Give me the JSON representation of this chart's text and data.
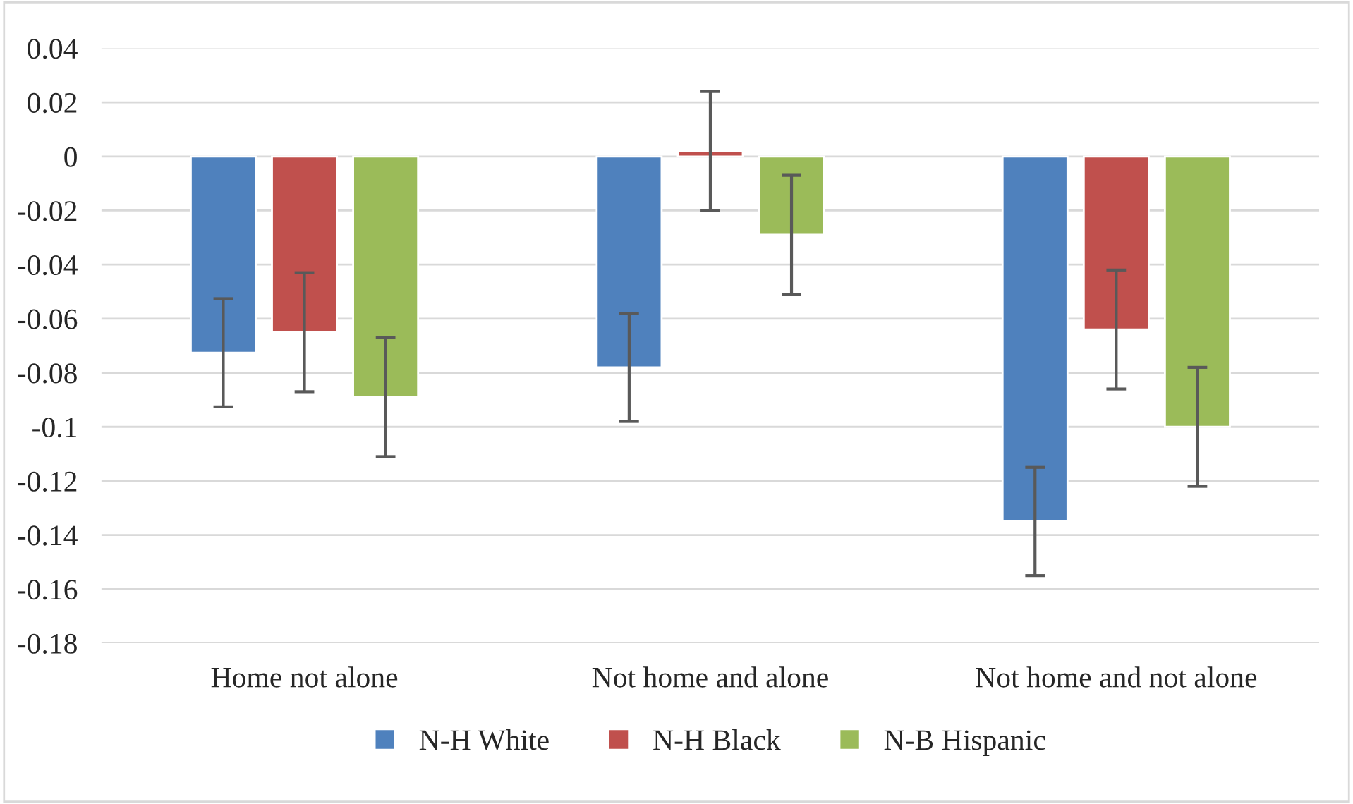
{
  "chart_data": {
    "type": "bar",
    "categories": [
      "Home not alone",
      "Not home and alone",
      "Not home and not alone"
    ],
    "series": [
      {
        "name": "N-H White",
        "color": "#4f81bd",
        "values": [
          -0.0726,
          -0.078,
          -0.135
        ],
        "errors": [
          0.02,
          0.02,
          0.02
        ]
      },
      {
        "name": "N-H Black",
        "color": "#c0504d",
        "values": [
          -0.065,
          0.002,
          -0.064
        ],
        "errors": [
          0.022,
          0.022,
          0.022
        ]
      },
      {
        "name": "N-B Hispanic",
        "color": "#9bbb59",
        "values": [
          -0.089,
          -0.029,
          -0.1
        ],
        "errors": [
          0.022,
          0.022,
          0.022
        ]
      }
    ],
    "ylim": [
      -0.18,
      0.04
    ],
    "yticks": [
      {
        "value": -0.18,
        "label": "-0.18"
      },
      {
        "value": -0.16,
        "label": "-0.16"
      },
      {
        "value": -0.14,
        "label": "-0.14"
      },
      {
        "value": -0.12,
        "label": "-0.12"
      },
      {
        "value": -0.1,
        "label": "-0.1"
      },
      {
        "value": -0.08,
        "label": "-0.08"
      },
      {
        "value": -0.06,
        "label": "-0.06"
      },
      {
        "value": -0.04,
        "label": "-0.04"
      },
      {
        "value": -0.02,
        "label": "-0.02"
      },
      0,
      0.02,
      0.04
    ],
    "grid": "y",
    "legend": "bottom"
  }
}
